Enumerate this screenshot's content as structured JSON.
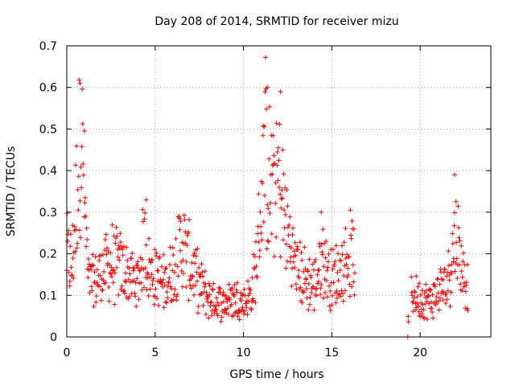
{
  "chart_data": {
    "type": "scatter",
    "title": "Day 208 of 2014, SRMTID for receiver mizu",
    "xlabel": "GPS time / hours",
    "ylabel": "SRMTID / TECUs",
    "xlim": [
      0,
      24
    ],
    "ylim": [
      0,
      0.7
    ],
    "x_ticks": [
      0,
      5,
      10,
      15,
      20
    ],
    "x_tick_labels": [
      "0",
      "5",
      "10",
      "15",
      "20"
    ],
    "y_ticks": [
      0,
      0.1,
      0.2,
      0.3,
      0.4,
      0.5,
      0.6,
      0.7
    ],
    "y_tick_labels": [
      "0",
      "0.1",
      "0.2",
      "0.3",
      "0.4",
      "0.5",
      "0.6",
      "0.7"
    ],
    "grid": true,
    "marker": "+",
    "marker_color": "#ff0000",
    "series": [
      {
        "name": "SRMTID",
        "segments": [
          {
            "x_start": 0.0,
            "x_end": 16.3,
            "step": 0.025
          },
          {
            "x_start": 19.3,
            "x_end": 19.35,
            "step": 0.02
          },
          {
            "x_start": 19.5,
            "x_end": 22.7,
            "step": 0.025
          }
        ],
        "envelope_keypoints": [
          [
            0.0,
            0.19
          ],
          [
            0.3,
            0.16
          ],
          [
            0.6,
            0.36
          ],
          [
            0.8,
            0.48
          ],
          [
            1.0,
            0.33
          ],
          [
            1.2,
            0.13
          ],
          [
            1.5,
            0.12
          ],
          [
            2.0,
            0.15
          ],
          [
            2.5,
            0.17
          ],
          [
            3.0,
            0.16
          ],
          [
            3.5,
            0.14
          ],
          [
            4.0,
            0.12
          ],
          [
            4.4,
            0.22
          ],
          [
            4.7,
            0.15
          ],
          [
            5.0,
            0.14
          ],
          [
            5.5,
            0.12
          ],
          [
            6.0,
            0.15
          ],
          [
            6.5,
            0.22
          ],
          [
            7.0,
            0.16
          ],
          [
            7.5,
            0.12
          ],
          [
            8.0,
            0.09
          ],
          [
            8.5,
            0.08
          ],
          [
            9.0,
            0.08
          ],
          [
            9.5,
            0.09
          ],
          [
            10.0,
            0.08
          ],
          [
            10.5,
            0.1
          ],
          [
            10.8,
            0.2
          ],
          [
            11.2,
            0.42
          ],
          [
            11.6,
            0.33
          ],
          [
            12.0,
            0.37
          ],
          [
            12.3,
            0.28
          ],
          [
            12.7,
            0.2
          ],
          [
            13.0,
            0.16
          ],
          [
            13.5,
            0.13
          ],
          [
            14.0,
            0.12
          ],
          [
            14.5,
            0.18
          ],
          [
            15.0,
            0.13
          ],
          [
            15.5,
            0.15
          ],
          [
            16.0,
            0.19
          ],
          [
            16.3,
            0.17
          ],
          [
            19.3,
            0.0
          ],
          [
            19.5,
            0.1
          ],
          [
            20.0,
            0.09
          ],
          [
            20.5,
            0.08
          ],
          [
            21.0,
            0.1
          ],
          [
            21.5,
            0.12
          ],
          [
            22.0,
            0.24
          ],
          [
            22.3,
            0.17
          ],
          [
            22.7,
            0.12
          ]
        ],
        "peaks": [
          {
            "x": 0.75,
            "y": 0.61
          },
          {
            "x": 11.35,
            "y": 0.6
          },
          {
            "x": 12.1,
            "y": 0.59
          },
          {
            "x": 21.95,
            "y": 0.39
          },
          {
            "x": 4.5,
            "y": 0.33
          },
          {
            "x": 14.4,
            "y": 0.3
          }
        ]
      }
    ]
  }
}
